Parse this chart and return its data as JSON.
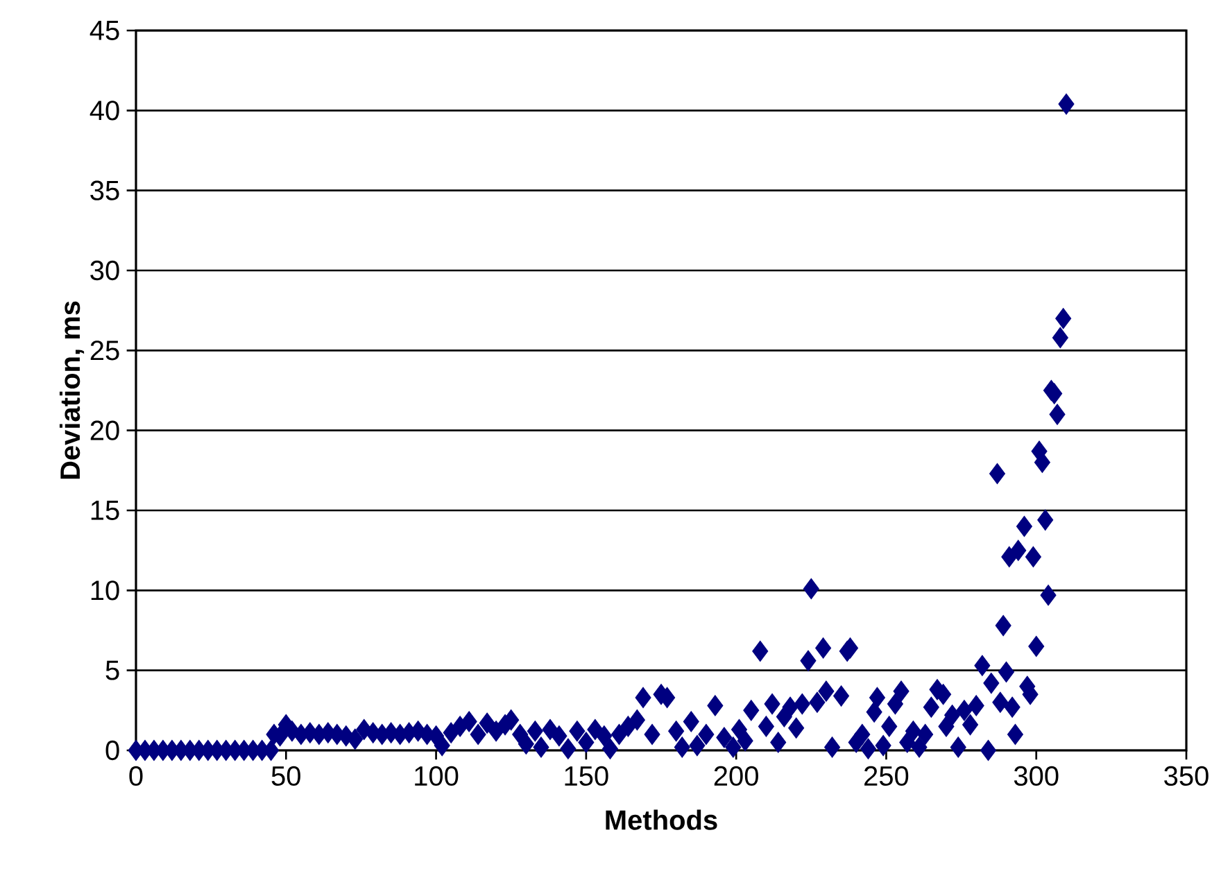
{
  "chart_data": {
    "type": "scatter",
    "xlabel": "Methods",
    "ylabel": "Deviation, ms",
    "x": [
      0,
      3,
      6,
      9,
      12,
      15,
      18,
      21,
      24,
      27,
      30,
      33,
      36,
      39,
      42,
      45,
      46,
      48,
      50,
      52,
      55,
      58,
      61,
      64,
      67,
      70,
      73,
      76,
      79,
      82,
      85,
      88,
      91,
      94,
      97,
      100,
      102,
      105,
      108,
      111,
      114,
      117,
      120,
      123,
      125,
      128,
      130,
      133,
      135,
      138,
      141,
      144,
      147,
      150,
      153,
      156,
      158,
      161,
      164,
      167,
      169,
      172,
      175,
      177,
      180,
      182,
      185,
      187,
      190,
      193,
      196,
      199,
      201,
      203,
      205,
      208,
      210,
      212,
      214,
      216,
      218,
      220,
      222,
      224,
      225,
      227,
      229,
      230,
      232,
      235,
      237,
      238,
      240,
      242,
      244,
      246,
      247,
      249,
      251,
      253,
      255,
      257,
      259,
      261,
      263,
      265,
      267,
      269,
      270,
      272,
      274,
      276,
      278,
      280,
      282,
      284,
      285,
      287,
      288,
      289,
      290,
      291,
      292,
      293,
      294,
      296,
      297,
      298,
      299,
      300,
      301,
      302,
      303,
      304,
      305,
      306,
      307,
      308,
      309,
      310
    ],
    "values": [
      0,
      0,
      0,
      0,
      0,
      0,
      0,
      0,
      0,
      0,
      0,
      0,
      0,
      0,
      0,
      0,
      1.0,
      0.9,
      1.6,
      1.2,
      1.0,
      1.1,
      1.0,
      1.1,
      1.0,
      0.9,
      0.7,
      1.3,
      1.1,
      1.0,
      1.1,
      1.0,
      1.1,
      1.2,
      1.0,
      0.9,
      0.3,
      1.1,
      1.5,
      1.8,
      1.0,
      1.7,
      1.2,
      1.6,
      1.9,
      1.0,
      0.4,
      1.2,
      0.2,
      1.3,
      0.9,
      0.1,
      1.2,
      0.5,
      1.3,
      0.9,
      0.1,
      1.0,
      1.5,
      1.9,
      3.3,
      1.0,
      3.5,
      3.3,
      1.2,
      0.2,
      1.8,
      0.3,
      1.0,
      2.8,
      0.8,
      0.2,
      1.3,
      0.6,
      2.5,
      6.2,
      1.5,
      2.9,
      0.5,
      2.1,
      2.7,
      1.4,
      2.9,
      5.6,
      10.1,
      3.0,
      6.4,
      3.7,
      0.2,
      3.4,
      6.2,
      6.4,
      0.5,
      1.0,
      0.1,
      2.4,
      3.3,
      0.3,
      1.5,
      2.9,
      3.7,
      0.5,
      1.2,
      0.2,
      1.0,
      2.7,
      3.8,
      3.5,
      1.5,
      2.2,
      0.2,
      2.5,
      1.6,
      2.8,
      5.3,
      0,
      4.2,
      17.3,
      3.0,
      7.8,
      4.9,
      12.1,
      2.7,
      1.0,
      12.5,
      14.0,
      4.0,
      3.5,
      12.1,
      6.5,
      18.7,
      18.0,
      14.4,
      9.7,
      22.5,
      22.3,
      21.0,
      25.8,
      27.0,
      40.4
    ],
    "color": "#000080",
    "marker": "diamond",
    "xlim": [
      0,
      350
    ],
    "xticks": [
      0,
      50,
      100,
      150,
      200,
      250,
      300,
      350
    ],
    "ylim": [
      0,
      45
    ],
    "yticks": [
      0,
      5,
      10,
      15,
      20,
      25,
      30,
      35,
      40,
      45
    ],
    "grid": "y"
  }
}
